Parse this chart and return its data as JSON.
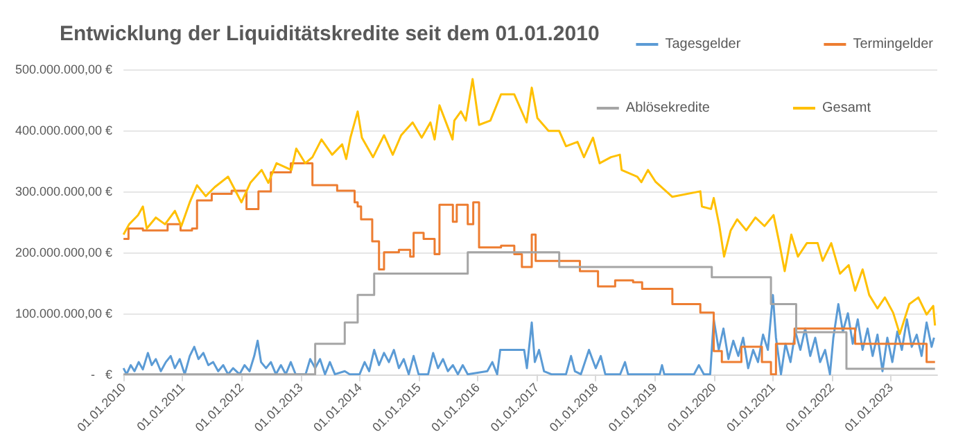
{
  "chart_data": {
    "type": "line",
    "title": "Entwicklung der Liquiditätskredite seit dem 01.01.2010",
    "xlim": [
      "2010-01-01",
      "2023-10-15"
    ],
    "xticks": [
      {
        "value": "2010-01-01",
        "label": "01.01.2010"
      },
      {
        "value": "2011-01-01",
        "label": "01.01.2011"
      },
      {
        "value": "2012-01-01",
        "label": "01.01.2012"
      },
      {
        "value": "2013-01-01",
        "label": "01.01.2013"
      },
      {
        "value": "2014-01-01",
        "label": "01.01.2014"
      },
      {
        "value": "2015-01-01",
        "label": "01.01.2015"
      },
      {
        "value": "2016-01-01",
        "label": "01.01.2016"
      },
      {
        "value": "2017-01-01",
        "label": "01.01.2017"
      },
      {
        "value": "2018-01-01",
        "label": "01.01.2018"
      },
      {
        "value": "2019-01-01",
        "label": "01.01.2019"
      },
      {
        "value": "2020-01-01",
        "label": "01.01.2020"
      },
      {
        "value": "2021-01-01",
        "label": "01.01.2021"
      },
      {
        "value": "2022-01-01",
        "label": "01.01.2022"
      },
      {
        "value": "2023-01-01",
        "label": "01.01.2023"
      }
    ],
    "ylim": [
      0,
      500000000
    ],
    "yticks": [
      {
        "value": 0,
        "label": "-   €"
      },
      {
        "value": 100000000,
        "label": "100.000.000,00 €"
      },
      {
        "value": 200000000,
        "label": "200.000.000,00 €"
      },
      {
        "value": 300000000,
        "label": "300.000.000,00 €"
      },
      {
        "value": 400000000,
        "label": "400.000.000,00 €"
      },
      {
        "value": 500000000,
        "label": "500.000.000,00 €"
      }
    ],
    "grid": "y",
    "legend": "top right",
    "series": [
      {
        "name": "Tagesgelder",
        "color": "#5b9bd5",
        "type": "line",
        "x": [
          "2010-01-01",
          "2010-01-20",
          "2010-02-15",
          "2010-03-10",
          "2010-04-05",
          "2010-05-01",
          "2010-06-01",
          "2010-06-25",
          "2010-07-20",
          "2010-08-20",
          "2010-09-20",
          "2010-10-20",
          "2010-11-15",
          "2010-12-15",
          "2011-01-15",
          "2011-02-15",
          "2011-03-15",
          "2011-04-10",
          "2011-05-10",
          "2011-06-10",
          "2011-07-10",
          "2011-08-10",
          "2011-09-10",
          "2011-10-10",
          "2011-11-10",
          "2011-12-20",
          "2012-01-20",
          "2012-02-20",
          "2012-03-20",
          "2012-04-10",
          "2012-05-01",
          "2012-06-01",
          "2012-07-01",
          "2012-08-01",
          "2012-09-01",
          "2012-10-01",
          "2012-11-01",
          "2012-12-01",
          "2013-02-01",
          "2013-03-01",
          "2013-04-01",
          "2013-05-01",
          "2013-06-01",
          "2013-07-01",
          "2013-08-01",
          "2013-10-01",
          "2013-11-01",
          "2014-01-01",
          "2014-02-01",
          "2014-03-01",
          "2014-04-01",
          "2014-05-01",
          "2014-06-01",
          "2014-07-01",
          "2014-08-01",
          "2014-09-01",
          "2014-10-01",
          "2014-11-01",
          "2014-12-01",
          "2015-01-01",
          "2015-03-01",
          "2015-04-01",
          "2015-05-01",
          "2015-06-01",
          "2015-07-01",
          "2015-08-01",
          "2015-09-01",
          "2015-10-01",
          "2015-11-01",
          "2016-03-01",
          "2016-04-01",
          "2016-05-01",
          "2016-05-20",
          "2016-10-15",
          "2016-11-01",
          "2016-12-01",
          "2016-12-20",
          "2017-01-15",
          "2017-02-15",
          "2017-04-01",
          "2017-07-01",
          "2017-08-01",
          "2017-08-25",
          "2017-10-01",
          "2017-11-20",
          "2018-01-01",
          "2018-02-01",
          "2018-03-01",
          "2018-06-01",
          "2018-07-01",
          "2018-07-20",
          "2019-02-01",
          "2019-02-15",
          "2019-03-01",
          "2019-09-01",
          "2019-10-01",
          "2019-11-01",
          "2019-12-10",
          "2020-01-01",
          "2020-02-01",
          "2020-03-01",
          "2020-04-01",
          "2020-05-01",
          "2020-06-01",
          "2020-07-01",
          "2020-08-01",
          "2020-09-01",
          "2020-10-01",
          "2020-11-01",
          "2020-12-01",
          "2021-01-01",
          "2021-01-20",
          "2021-02-20",
          "2021-03-20",
          "2021-04-20",
          "2021-05-20",
          "2021-06-20",
          "2021-07-20",
          "2021-08-20",
          "2021-09-20",
          "2021-10-20",
          "2021-11-20",
          "2021-12-20",
          "2022-01-10",
          "2022-02-10",
          "2022-03-10",
          "2022-04-10",
          "2022-05-10",
          "2022-06-10",
          "2022-07-10",
          "2022-08-10",
          "2022-09-10",
          "2022-10-10",
          "2022-11-10",
          "2022-12-10",
          "2023-01-10",
          "2023-02-10",
          "2023-03-10",
          "2023-04-10",
          "2023-05-10",
          "2023-06-10",
          "2023-07-10",
          "2023-08-10",
          "2023-09-10",
          "2023-09-25"
        ],
        "values": [
          10000000,
          0,
          15000000,
          5000000,
          20000000,
          8000000,
          35000000,
          15000000,
          25000000,
          5000000,
          20000000,
          30000000,
          10000000,
          25000000,
          0,
          30000000,
          45000000,
          25000000,
          35000000,
          15000000,
          20000000,
          5000000,
          15000000,
          0,
          10000000,
          0,
          15000000,
          5000000,
          30000000,
          55000000,
          20000000,
          10000000,
          20000000,
          0,
          15000000,
          0,
          20000000,
          0,
          0,
          25000000,
          10000000,
          25000000,
          0,
          20000000,
          0,
          5000000,
          0,
          0,
          20000000,
          5000000,
          40000000,
          15000000,
          35000000,
          20000000,
          40000000,
          10000000,
          25000000,
          0,
          30000000,
          0,
          0,
          35000000,
          10000000,
          25000000,
          5000000,
          15000000,
          0,
          15000000,
          0,
          5000000,
          20000000,
          0,
          40000000,
          40000000,
          10000000,
          85000000,
          20000000,
          40000000,
          5000000,
          0,
          0,
          30000000,
          5000000,
          0,
          40000000,
          10000000,
          30000000,
          0,
          0,
          20000000,
          0,
          0,
          15000000,
          0,
          0,
          15000000,
          0,
          0,
          90000000,
          40000000,
          75000000,
          25000000,
          55000000,
          30000000,
          60000000,
          10000000,
          40000000,
          20000000,
          65000000,
          40000000,
          130000000,
          60000000,
          0,
          50000000,
          20000000,
          70000000,
          40000000,
          75000000,
          30000000,
          60000000,
          20000000,
          40000000,
          0,
          60000000,
          115000000,
          70000000,
          100000000,
          50000000,
          90000000,
          40000000,
          75000000,
          30000000,
          65000000,
          5000000,
          60000000,
          20000000,
          70000000,
          40000000,
          90000000,
          45000000,
          65000000,
          30000000,
          85000000,
          45000000,
          60000000
        ]
      },
      {
        "name": "Termingelder",
        "color": "#ed7d31",
        "type": "step",
        "x": [
          "2010-01-01",
          "2010-02-01",
          "2010-05-01",
          "2010-10-01",
          "2010-12-20",
          "2011-03-01",
          "2011-04-01",
          "2011-07-01",
          "2011-11-01",
          "2012-02-01",
          "2012-04-15",
          "2012-07-01",
          "2012-11-01",
          "2013-03-15",
          "2013-08-15",
          "2013-12-01",
          "2013-12-20",
          "2014-01-10",
          "2014-03-20",
          "2014-05-01",
          "2014-06-01",
          "2014-09-01",
          "2014-11-10",
          "2014-12-01",
          "2015-02-01",
          "2015-04-10",
          "2015-05-10",
          "2015-08-01",
          "2015-08-25",
          "2015-11-01",
          "2015-12-05",
          "2016-01-10",
          "2016-05-25",
          "2016-08-15",
          "2016-10-01",
          "2016-12-01",
          "2016-12-25",
          "2017-09-25",
          "2018-01-15",
          "2018-05-01",
          "2018-08-20",
          "2018-10-15",
          "2019-04-20",
          "2019-10-10",
          "2020-01-01",
          "2020-02-20",
          "2020-06-20",
          "2020-10-25",
          "2020-12-20",
          "2021-01-20",
          "2021-05-15",
          "2022-05-25",
          "2023-08-10",
          "2023-10-01"
        ],
        "values": [
          222000000,
          239000000,
          236000000,
          246000000,
          236000000,
          239000000,
          285000000,
          296000000,
          301000000,
          271000000,
          300000000,
          331000000,
          346000000,
          310000000,
          301000000,
          282000000,
          275000000,
          254000000,
          218000000,
          172000000,
          200000000,
          204000000,
          193000000,
          232000000,
          222000000,
          197000000,
          278000000,
          250000000,
          278000000,
          246000000,
          282000000,
          208000000,
          211000000,
          197000000,
          176000000,
          229000000,
          186000000,
          169000000,
          144000000,
          154000000,
          151000000,
          140000000,
          115000000,
          101000000,
          38000000,
          20000000,
          45000000,
          20000000,
          0,
          50000000,
          75000000,
          50000000,
          20000000,
          20000000
        ]
      },
      {
        "name": "Ablösekredite",
        "color": "#a5a5a5",
        "type": "step",
        "x": [
          "2010-01-01",
          "2013-04-01",
          "2013-10-01",
          "2013-12-20",
          "2014-04-01",
          "2015-11-01",
          "2017-05-20",
          "2019-12-20",
          "2020-12-20",
          "2021-05-25",
          "2022-04-01",
          "2023-10-01"
        ],
        "values": [
          0,
          50000000,
          85000000,
          130000000,
          165000000,
          200000000,
          176000000,
          159000000,
          115000000,
          69000000,
          9000000,
          9000000
        ]
      },
      {
        "name": "Gesamt",
        "color": "#ffc000",
        "type": "line",
        "x": [
          "2010-01-01",
          "2010-02-05",
          "2010-04-01",
          "2010-05-01",
          "2010-05-25",
          "2010-07-20",
          "2010-09-15",
          "2010-11-15",
          "2010-12-25",
          "2011-02-15",
          "2011-04-01",
          "2011-05-25",
          "2011-07-20",
          "2011-10-10",
          "2012-01-01",
          "2012-02-25",
          "2012-05-05",
          "2012-06-15",
          "2012-08-05",
          "2012-11-05",
          "2012-12-05",
          "2013-01-30",
          "2013-03-15",
          "2013-05-10",
          "2013-07-15",
          "2013-09-15",
          "2013-10-10",
          "2013-11-05",
          "2013-12-20",
          "2014-01-15",
          "2014-03-25",
          "2014-06-01",
          "2014-07-25",
          "2014-09-15",
          "2014-11-25",
          "2015-01-20",
          "2015-03-15",
          "2015-04-10",
          "2015-05-10",
          "2015-07-30",
          "2015-08-10",
          "2015-09-20",
          "2015-10-20",
          "2015-12-01",
          "2016-01-10",
          "2016-03-20",
          "2016-05-25",
          "2016-08-15",
          "2016-10-30",
          "2016-12-01",
          "2017-01-05",
          "2017-03-15",
          "2017-05-20",
          "2017-07-01",
          "2017-09-10",
          "2017-10-20",
          "2017-12-15",
          "2018-01-25",
          "2018-04-05",
          "2018-05-30",
          "2018-06-10",
          "2018-09-15",
          "2018-10-10",
          "2018-11-20",
          "2019-01-05",
          "2019-04-20",
          "2019-10-10",
          "2019-10-20",
          "2019-12-15",
          "2020-01-01",
          "2020-02-05",
          "2020-03-05",
          "2020-04-15",
          "2020-05-25",
          "2020-07-20",
          "2020-09-15",
          "2020-11-10",
          "2021-01-05",
          "2021-02-10",
          "2021-03-15",
          "2021-04-25",
          "2021-06-05",
          "2021-07-30",
          "2021-10-05",
          "2021-11-05",
          "2021-12-28",
          "2022-02-20",
          "2022-04-15",
          "2022-05-25",
          "2022-07-10",
          "2022-08-20",
          "2022-10-10",
          "2022-11-25",
          "2023-01-15",
          "2023-02-25",
          "2023-04-25",
          "2023-06-20",
          "2023-08-10",
          "2023-09-20",
          "2023-10-01"
        ],
        "values": [
          229000000,
          246000000,
          261000000,
          275000000,
          239000000,
          257000000,
          246000000,
          268000000,
          243000000,
          282000000,
          310000000,
          292000000,
          307000000,
          324000000,
          282000000,
          314000000,
          335000000,
          314000000,
          346000000,
          335000000,
          370000000,
          346000000,
          356000000,
          385000000,
          360000000,
          377000000,
          353000000,
          388000000,
          431000000,
          388000000,
          356000000,
          392000000,
          360000000,
          392000000,
          413000000,
          388000000,
          413000000,
          385000000,
          441000000,
          385000000,
          416000000,
          431000000,
          416000000,
          484000000,
          409000000,
          416000000,
          459000000,
          459000000,
          413000000,
          470000000,
          420000000,
          399000000,
          399000000,
          374000000,
          381000000,
          356000000,
          388000000,
          346000000,
          356000000,
          360000000,
          335000000,
          324000000,
          315000000,
          335000000,
          316000000,
          291000000,
          300000000,
          275000000,
          271000000,
          289000000,
          243000000,
          193000000,
          236000000,
          254000000,
          236000000,
          257000000,
          243000000,
          261000000,
          215000000,
          169000000,
          229000000,
          193000000,
          215000000,
          215000000,
          186000000,
          215000000,
          165000000,
          179000000,
          137000000,
          172000000,
          130000000,
          108000000,
          126000000,
          101000000,
          66000000,
          115000000,
          126000000,
          98000000,
          112000000,
          80000000
        ]
      }
    ]
  }
}
